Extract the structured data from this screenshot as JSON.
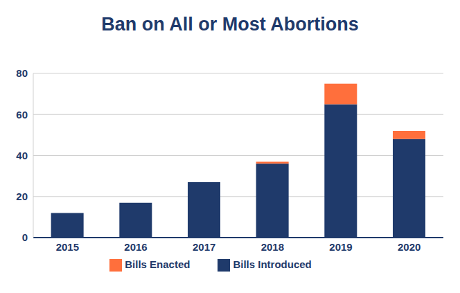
{
  "chart_data": {
    "type": "bar",
    "title": "Ban on All or Most Abortions",
    "categories": [
      "2015",
      "2016",
      "2017",
      "2018",
      "2019",
      "2020"
    ],
    "series": [
      {
        "name": "Bills Introduced",
        "color": "#1f3a6b",
        "values": [
          12,
          17,
          27,
          36,
          65,
          48
        ]
      },
      {
        "name": "Bills Enacted",
        "color": "#ff6f3c",
        "values": [
          0,
          0,
          0,
          1,
          10,
          4
        ]
      }
    ],
    "ylim": [
      0,
      80
    ],
    "yticks": [
      0,
      20,
      40,
      60,
      80
    ],
    "grid": true,
    "stacked": true,
    "legend": "bottom"
  }
}
